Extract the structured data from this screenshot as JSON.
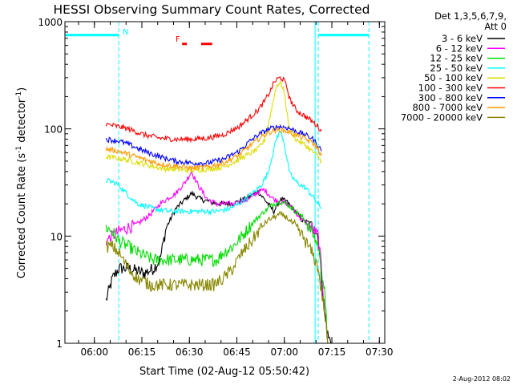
{
  "title": "HESSI Observing Summary Count Rates, Corrected",
  "legend": {
    "header": [
      "Det 1,3,5,6,7,9,",
      "Att 0"
    ],
    "entries": [
      {
        "label": "3 - 6 keV",
        "color": "#000000"
      },
      {
        "label": "6 - 12 keV",
        "color": "#ff00ff"
      },
      {
        "label": "12 - 25 keV",
        "color": "#00dd00"
      },
      {
        "label": "25 - 50 keV",
        "color": "#00ffff"
      },
      {
        "label": "50 - 100 keV",
        "color": "#dddd00"
      },
      {
        "label": "100 - 300 keV",
        "color": "#ff0000"
      },
      {
        "label": "300 - 800 keV",
        "color": "#0000ff"
      },
      {
        "label": "800 - 7000 keV",
        "color": "#ff9900"
      },
      {
        "label": "7000 - 20000 keV",
        "color": "#888800"
      }
    ]
  },
  "annotations": {
    "night_marker": "N",
    "flare_marker": "F",
    "timestamp": "2-Aug-2012 08:02"
  },
  "chart_data": {
    "type": "line",
    "title": "HESSI Observing Summary Count Rates, Corrected",
    "xlabel": "Start Time (02-Aug-12 05:50:42)",
    "ylabel": "Corrected Count Rate (s⁻¹ detector⁻¹)",
    "ylabel_parts": [
      "Corrected Count Rate (s",
      "-1",
      " detector",
      "-1",
      ")"
    ],
    "x_unit": "minutes since 05:50:42",
    "xlim": [
      0,
      101
    ],
    "ylim": [
      1,
      1000
    ],
    "yscale": "log",
    "x_ticks": [
      {
        "x": 9.3,
        "label": "06:00"
      },
      {
        "x": 24.3,
        "label": "06:15"
      },
      {
        "x": 39.3,
        "label": "06:30"
      },
      {
        "x": 54.3,
        "label": "06:45"
      },
      {
        "x": 69.3,
        "label": "07:00"
      },
      {
        "x": 84.3,
        "label": "07:15"
      },
      {
        "x": 99.3,
        "label": "07:30"
      }
    ],
    "y_ticks": [
      {
        "y": 1,
        "label": "1"
      },
      {
        "y": 10,
        "label": "10"
      },
      {
        "y": 100,
        "label": "100"
      },
      {
        "y": 1000,
        "label": "1000"
      }
    ],
    "night_segments": [
      [
        0,
        17
      ],
      [
        80,
        96
      ]
    ],
    "night_level": 750,
    "event_lines": [
      17,
      79,
      80,
      96
    ],
    "flare_marks": [
      [
        37,
        38.5
      ],
      [
        43,
        46.5
      ]
    ],
    "flare_level": 620,
    "series": [
      {
        "name": "3 - 6 keV",
        "color": "#000000",
        "points": [
          [
            13,
            2.5
          ],
          [
            15,
            4
          ],
          [
            17,
            5
          ],
          [
            20,
            5
          ],
          [
            25,
            4.5
          ],
          [
            28,
            5
          ],
          [
            30,
            6
          ],
          [
            32,
            12
          ],
          [
            35,
            18
          ],
          [
            38,
            22
          ],
          [
            40,
            25
          ],
          [
            43,
            22
          ],
          [
            48,
            20
          ],
          [
            53,
            20
          ],
          [
            58,
            23
          ],
          [
            61,
            26
          ],
          [
            63,
            22
          ],
          [
            66,
            17
          ],
          [
            68,
            22
          ],
          [
            70,
            21
          ],
          [
            72,
            18
          ],
          [
            75,
            14
          ],
          [
            78,
            13
          ],
          [
            80,
            10
          ],
          [
            81,
            4
          ],
          [
            82,
            2
          ],
          [
            83,
            1.2
          ],
          [
            84,
            1
          ]
        ]
      },
      {
        "name": "6 - 12 keV",
        "color": "#ff00ff",
        "points": [
          [
            13,
            9
          ],
          [
            15,
            10
          ],
          [
            17,
            11
          ],
          [
            20,
            12
          ],
          [
            23,
            13
          ],
          [
            27,
            16
          ],
          [
            30,
            20
          ],
          [
            33,
            23
          ],
          [
            35,
            25
          ],
          [
            38,
            32
          ],
          [
            40,
            40
          ],
          [
            42,
            30
          ],
          [
            45,
            22
          ],
          [
            48,
            20
          ],
          [
            53,
            20
          ],
          [
            58,
            22
          ],
          [
            61,
            26
          ],
          [
            63,
            27
          ],
          [
            66,
            22
          ],
          [
            68,
            21
          ],
          [
            70,
            20
          ],
          [
            72,
            18
          ],
          [
            75,
            14
          ],
          [
            78,
            12
          ],
          [
            80,
            10
          ],
          [
            81,
            5
          ],
          [
            82,
            2
          ],
          [
            83,
            1
          ]
        ]
      },
      {
        "name": "12 - 25 keV",
        "color": "#00dd00",
        "points": [
          [
            13,
            12
          ],
          [
            15,
            11
          ],
          [
            17,
            9
          ],
          [
            20,
            8
          ],
          [
            23,
            7
          ],
          [
            28,
            6
          ],
          [
            33,
            6
          ],
          [
            38,
            6
          ],
          [
            43,
            6
          ],
          [
            48,
            6
          ],
          [
            50,
            7
          ],
          [
            53,
            8
          ],
          [
            56,
            10
          ],
          [
            59,
            13
          ],
          [
            62,
            16
          ],
          [
            64,
            18
          ],
          [
            66,
            20
          ],
          [
            68,
            21
          ],
          [
            70,
            20
          ],
          [
            72,
            18
          ],
          [
            75,
            15
          ],
          [
            78,
            11
          ],
          [
            80,
            8
          ],
          [
            81,
            5
          ],
          [
            82,
            3
          ],
          [
            83,
            1
          ]
        ]
      },
      {
        "name": "25 - 50 keV",
        "color": "#00ffff",
        "points": [
          [
            13,
            33
          ],
          [
            15,
            32
          ],
          [
            17,
            30
          ],
          [
            20,
            24
          ],
          [
            23,
            20
          ],
          [
            28,
            18
          ],
          [
            33,
            17
          ],
          [
            38,
            17
          ],
          [
            43,
            17
          ],
          [
            48,
            17
          ],
          [
            52,
            18
          ],
          [
            56,
            21
          ],
          [
            60,
            26
          ],
          [
            62,
            30
          ],
          [
            64,
            38
          ],
          [
            66,
            65
          ],
          [
            67,
            85
          ],
          [
            68,
            95
          ],
          [
            69,
            80
          ],
          [
            70,
            55
          ],
          [
            71,
            38
          ],
          [
            73,
            32
          ],
          [
            76,
            28
          ],
          [
            78,
            24
          ],
          [
            80,
            20
          ],
          [
            81,
            18
          ]
        ]
      },
      {
        "name": "50 - 100 keV",
        "color": "#dddd00",
        "points": [
          [
            13,
            55
          ],
          [
            17,
            53
          ],
          [
            20,
            51
          ],
          [
            25,
            47
          ],
          [
            30,
            43
          ],
          [
            35,
            42
          ],
          [
            40,
            41
          ],
          [
            45,
            42
          ],
          [
            50,
            44
          ],
          [
            55,
            52
          ],
          [
            58,
            58
          ],
          [
            61,
            65
          ],
          [
            63,
            78
          ],
          [
            65,
            140
          ],
          [
            66,
            200
          ],
          [
            67,
            260
          ],
          [
            68,
            270
          ],
          [
            69,
            240
          ],
          [
            70,
            150
          ],
          [
            71,
            100
          ],
          [
            73,
            80
          ],
          [
            76,
            70
          ],
          [
            78,
            62
          ],
          [
            80,
            55
          ],
          [
            81,
            50
          ]
        ]
      },
      {
        "name": "100 - 300 keV",
        "color": "#ff0000",
        "points": [
          [
            13,
            110
          ],
          [
            17,
            105
          ],
          [
            20,
            100
          ],
          [
            25,
            88
          ],
          [
            30,
            82
          ],
          [
            35,
            80
          ],
          [
            40,
            80
          ],
          [
            45,
            82
          ],
          [
            50,
            88
          ],
          [
            55,
            105
          ],
          [
            58,
            125
          ],
          [
            61,
            150
          ],
          [
            63,
            180
          ],
          [
            65,
            230
          ],
          [
            66,
            270
          ],
          [
            67,
            290
          ],
          [
            68,
            300
          ],
          [
            69,
            290
          ],
          [
            70,
            250
          ],
          [
            71,
            190
          ],
          [
            73,
            150
          ],
          [
            76,
            130
          ],
          [
            78,
            118
          ],
          [
            80,
            105
          ],
          [
            81,
            95
          ]
        ]
      },
      {
        "name": "300 - 800 keV",
        "color": "#0000ff",
        "points": [
          [
            13,
            80
          ],
          [
            17,
            77
          ],
          [
            20,
            72
          ],
          [
            25,
            62
          ],
          [
            30,
            55
          ],
          [
            35,
            50
          ],
          [
            40,
            48
          ],
          [
            45,
            48
          ],
          [
            50,
            52
          ],
          [
            55,
            62
          ],
          [
            58,
            75
          ],
          [
            61,
            88
          ],
          [
            64,
            98
          ],
          [
            66,
            103
          ],
          [
            68,
            105
          ],
          [
            70,
            103
          ],
          [
            72,
            98
          ],
          [
            75,
            90
          ],
          [
            78,
            82
          ],
          [
            80,
            70
          ],
          [
            81,
            62
          ]
        ]
      },
      {
        "name": "800 - 7000 keV",
        "color": "#ff9900",
        "points": [
          [
            13,
            65
          ],
          [
            17,
            62
          ],
          [
            20,
            58
          ],
          [
            25,
            52
          ],
          [
            30,
            47
          ],
          [
            35,
            45
          ],
          [
            40,
            43
          ],
          [
            45,
            44
          ],
          [
            50,
            48
          ],
          [
            55,
            57
          ],
          [
            58,
            68
          ],
          [
            61,
            80
          ],
          [
            64,
            92
          ],
          [
            66,
            96
          ],
          [
            68,
            98
          ],
          [
            70,
            95
          ],
          [
            72,
            90
          ],
          [
            75,
            83
          ],
          [
            78,
            75
          ],
          [
            80,
            65
          ],
          [
            81,
            56
          ]
        ]
      },
      {
        "name": "7000 - 20000 keV",
        "color": "#888800",
        "points": [
          [
            13,
            8
          ],
          [
            15,
            8
          ],
          [
            17,
            7
          ],
          [
            20,
            5
          ],
          [
            23,
            4
          ],
          [
            27,
            3.5
          ],
          [
            32,
            3.5
          ],
          [
            37,
            3.5
          ],
          [
            42,
            3.5
          ],
          [
            47,
            3.5
          ],
          [
            50,
            4
          ],
          [
            53,
            5
          ],
          [
            56,
            7
          ],
          [
            59,
            9
          ],
          [
            62,
            12
          ],
          [
            64,
            14
          ],
          [
            66,
            15
          ],
          [
            68,
            16
          ],
          [
            70,
            15
          ],
          [
            72,
            13
          ],
          [
            75,
            10
          ],
          [
            78,
            7
          ],
          [
            80,
            5
          ],
          [
            81,
            3
          ],
          [
            82,
            2
          ],
          [
            83,
            1
          ]
        ]
      }
    ]
  }
}
